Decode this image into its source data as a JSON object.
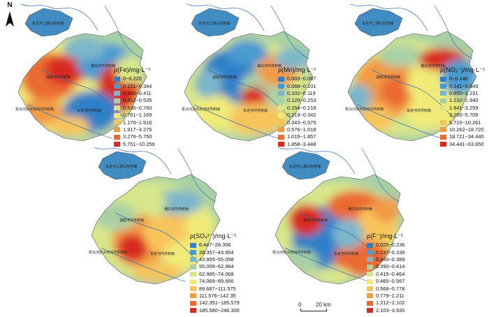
{
  "north_label": "N",
  "scale_bar": {
    "start": "0",
    "end": "20 km"
  },
  "place_labels": {
    "north_plain": "永定河上游山前地铺",
    "west_plain": "温榆河冲洪积扇",
    "east_plain": "潮白河冲洪积扇",
    "south_west": "拒马河及大石河冲洪积扇",
    "south_center": "永定河冲洪积扇"
  },
  "maps": [
    {
      "id": "fe",
      "legend_title": "ρ(Fe)/mg·L⁻¹",
      "classes": [
        {
          "label": "0~0.220",
          "color": "#2f80c8"
        },
        {
          "label": "0.221~0.344",
          "color": "#4a9ad0"
        },
        {
          "label": "0.345~0.411",
          "color": "#7bb6c9"
        },
        {
          "label": "0.412~0.535",
          "color": "#a9d0a4"
        },
        {
          "label": "0.536~0.760",
          "color": "#d7e68a"
        },
        {
          "label": "0.761~1.169",
          "color": "#f1ea78"
        },
        {
          "label": "1.170~1.916",
          "color": "#f7c45b"
        },
        {
          "label": "1.917~3.275",
          "color": "#f29a44"
        },
        {
          "label": "3.276~5.750",
          "color": "#ea6a32"
        },
        {
          "label": "5.751~10.259",
          "color": "#d92a22"
        }
      ]
    },
    {
      "id": "mn",
      "legend_title": "ρ(Mn)/mg·L⁻¹",
      "classes": [
        {
          "label": "0.003~0.067",
          "color": "#2f80c8"
        },
        {
          "label": "0.068~0.101",
          "color": "#4a9ad0"
        },
        {
          "label": "0.102~0.119",
          "color": "#7bb6c9"
        },
        {
          "label": "0.120~0.153",
          "color": "#a9d0a4"
        },
        {
          "label": "0.154~0.218",
          "color": "#d7e68a"
        },
        {
          "label": "0.219~0.342",
          "color": "#f1ea78"
        },
        {
          "label": "0.343~0.575",
          "color": "#f7c45b"
        },
        {
          "label": "0.576~1.018",
          "color": "#f29a44"
        },
        {
          "label": "1.019~1.857",
          "color": "#ea6a32"
        },
        {
          "label": "1.858~3.448",
          "color": "#d92a22"
        }
      ]
    },
    {
      "id": "no3",
      "legend_title": "ρ(NO₃⁻)/mg·L⁻¹",
      "classes": [
        {
          "label": "0~0.140",
          "color": "#2f80c8"
        },
        {
          "label": "0.141~0.849",
          "color": "#4a9ad0"
        },
        {
          "label": "0.850~1.231",
          "color": "#7bb6c9"
        },
        {
          "label": "1.232~1.940",
          "color": "#a9d0a4"
        },
        {
          "label": "1.941~3.259",
          "color": "#d7e68a"
        },
        {
          "label": "3.260~5.709",
          "color": "#f1ea78"
        },
        {
          "label": "5.710~10.261",
          "color": "#f7c45b"
        },
        {
          "label": "10.262~18.720",
          "color": "#f29a44"
        },
        {
          "label": "18.721~34.440",
          "color": "#ea6a32"
        },
        {
          "label": "34.441~63.650",
          "color": "#d92a22"
        }
      ]
    },
    {
      "id": "so4",
      "legend_title": "ρ(SO₄²⁻)/mg·L⁻¹",
      "classes": [
        {
          "label": "6.447~28.356",
          "color": "#2f80c8"
        },
        {
          "label": "28.357~43.954",
          "color": "#4a9ad0"
        },
        {
          "label": "43.955~55.058",
          "color": "#7bb6c9"
        },
        {
          "label": "55.059~62.964",
          "color": "#a9d0a4"
        },
        {
          "label": "62.965~74.068",
          "color": "#d7e68a"
        },
        {
          "label": "74.069~89.666",
          "color": "#f1ea78"
        },
        {
          "label": "89.667~111.575",
          "color": "#f7c45b"
        },
        {
          "label": "111.576~142.35",
          "color": "#f29a44"
        },
        {
          "label": "142.351~185.579",
          "color": "#ea6a32"
        },
        {
          "label": "185.580~246.300",
          "color": "#d92a22"
        }
      ]
    },
    {
      "id": "f",
      "legend_title": "ρ(F⁻)/mg·L⁻¹",
      "classes": [
        {
          "label": "0.025~0.236",
          "color": "#2f80c8"
        },
        {
          "label": "0.237~0.339",
          "color": "#4a9ad0"
        },
        {
          "label": "0.340~0.389",
          "color": "#7bb6c9"
        },
        {
          "label": "0.390~0.414",
          "color": "#a9d0a4"
        },
        {
          "label": "0.415~0.464",
          "color": "#d7e68a"
        },
        {
          "label": "0.465~0.567",
          "color": "#f1ea78"
        },
        {
          "label": "0.568~0.778",
          "color": "#f7c45b"
        },
        {
          "label": "0.779~1.211",
          "color": "#f29a44"
        },
        {
          "label": "1.212~2.102",
          "color": "#ea6a32"
        },
        {
          "label": "2.103~3.930",
          "color": "#d92a22"
        }
      ]
    }
  ]
}
